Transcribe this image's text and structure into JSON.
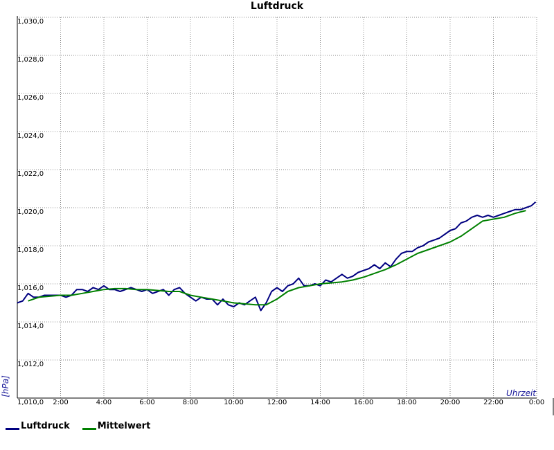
{
  "chart_data": {
    "type": "line",
    "title": "Luftdruck",
    "ylabel": "[hPa]",
    "xlabel": "Uhrzeit",
    "xlim": [
      0,
      24
    ],
    "ylim": [
      1010,
      1030
    ],
    "yticks": [
      1010,
      1012,
      1014,
      1016,
      1018,
      1020,
      1022,
      1024,
      1026,
      1028,
      1030
    ],
    "ytick_labels": [
      "1,010,0",
      "1,012,0",
      "1,014,0",
      "1,016,0",
      "1,018,0",
      "1,020,0",
      "1,022,0",
      "1,024,0",
      "1,026,0",
      "1,028,0",
      "1,030,0"
    ],
    "xticks": [
      2,
      4,
      6,
      8,
      10,
      12,
      14,
      16,
      18,
      20,
      22,
      24
    ],
    "xtick_labels": [
      "2:00",
      "4:00",
      "6:00",
      "8:00",
      "10:00",
      "12:00",
      "14:00",
      "16:00",
      "18:00",
      "20:00",
      "22:00",
      "0:00"
    ],
    "grid": true,
    "legend": "bottom-left",
    "series": [
      {
        "name": "Luftdruck",
        "color": "#000080",
        "x": [
          0.0,
          0.25,
          0.5,
          0.75,
          1.0,
          1.25,
          1.5,
          1.75,
          2.0,
          2.25,
          2.5,
          2.75,
          3.0,
          3.25,
          3.5,
          3.75,
          4.0,
          4.25,
          4.5,
          4.75,
          5.0,
          5.25,
          5.5,
          5.75,
          6.0,
          6.25,
          6.5,
          6.75,
          7.0,
          7.25,
          7.5,
          7.75,
          8.0,
          8.25,
          8.5,
          8.75,
          9.0,
          9.25,
          9.5,
          9.75,
          10.0,
          10.25,
          10.5,
          10.75,
          11.0,
          11.25,
          11.5,
          11.75,
          12.0,
          12.25,
          12.5,
          12.75,
          13.0,
          13.25,
          13.5,
          13.75,
          14.0,
          14.25,
          14.5,
          14.75,
          15.0,
          15.25,
          15.5,
          15.75,
          16.0,
          16.25,
          16.5,
          16.75,
          17.0,
          17.25,
          17.5,
          17.75,
          18.0,
          18.25,
          18.5,
          18.75,
          19.0,
          19.25,
          19.5,
          19.75,
          20.0,
          20.25,
          20.5,
          20.75,
          21.0,
          21.25,
          21.5,
          21.75,
          22.0,
          22.25,
          22.5,
          22.75,
          23.0,
          23.25,
          23.5,
          23.75,
          23.95
        ],
        "y": [
          1015.0,
          1015.1,
          1015.5,
          1015.3,
          1015.3,
          1015.4,
          1015.4,
          1015.4,
          1015.4,
          1015.3,
          1015.4,
          1015.7,
          1015.7,
          1015.6,
          1015.8,
          1015.7,
          1015.9,
          1015.7,
          1015.7,
          1015.6,
          1015.7,
          1015.8,
          1015.7,
          1015.6,
          1015.7,
          1015.5,
          1015.6,
          1015.7,
          1015.4,
          1015.7,
          1015.8,
          1015.5,
          1015.3,
          1015.1,
          1015.3,
          1015.2,
          1015.2,
          1014.9,
          1015.2,
          1014.9,
          1014.8,
          1015.0,
          1014.9,
          1015.1,
          1015.3,
          1014.6,
          1015.0,
          1015.6,
          1015.8,
          1015.6,
          1015.9,
          1016.0,
          1016.3,
          1015.9,
          1015.9,
          1016.0,
          1015.9,
          1016.2,
          1016.1,
          1016.3,
          1016.5,
          1016.3,
          1016.4,
          1016.6,
          1016.7,
          1016.8,
          1017.0,
          1016.8,
          1017.1,
          1016.9,
          1017.3,
          1017.6,
          1017.7,
          1017.7,
          1017.9,
          1018.0,
          1018.2,
          1018.3,
          1018.4,
          1018.6,
          1018.8,
          1018.9,
          1019.2,
          1019.3,
          1019.5,
          1019.6,
          1019.5,
          1019.6,
          1019.5,
          1019.6,
          1019.7,
          1019.8,
          1019.9,
          1019.9,
          1020.0,
          1020.1,
          1020.3
        ]
      },
      {
        "name": "Mittelwert",
        "color": "#008000",
        "x": [
          0.5,
          1.0,
          1.5,
          2.0,
          2.5,
          3.0,
          3.5,
          4.0,
          4.5,
          5.0,
          5.5,
          6.0,
          6.5,
          7.0,
          7.5,
          8.0,
          8.5,
          9.0,
          9.5,
          10.0,
          10.5,
          11.0,
          11.5,
          12.0,
          12.5,
          13.0,
          13.5,
          14.0,
          14.5,
          15.0,
          15.5,
          16.0,
          16.5,
          17.0,
          17.5,
          18.0,
          18.5,
          19.0,
          19.5,
          20.0,
          20.5,
          21.0,
          21.5,
          22.0,
          22.5,
          23.0,
          23.5
        ],
        "y": [
          1015.1,
          1015.3,
          1015.35,
          1015.4,
          1015.4,
          1015.5,
          1015.6,
          1015.7,
          1015.75,
          1015.75,
          1015.7,
          1015.7,
          1015.65,
          1015.6,
          1015.6,
          1015.4,
          1015.3,
          1015.2,
          1015.1,
          1015.0,
          1014.95,
          1014.9,
          1014.9,
          1015.2,
          1015.6,
          1015.8,
          1015.9,
          1016.0,
          1016.05,
          1016.1,
          1016.2,
          1016.35,
          1016.55,
          1016.75,
          1017.0,
          1017.3,
          1017.6,
          1017.8,
          1018.0,
          1018.2,
          1018.5,
          1018.9,
          1019.3,
          1019.4,
          1019.5,
          1019.7,
          1019.85
        ]
      }
    ]
  }
}
